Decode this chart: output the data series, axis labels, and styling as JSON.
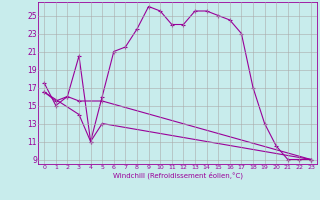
{
  "xlabel": "Windchill (Refroidissement éolien,°C)",
  "bg_color": "#c8ecec",
  "line_color": "#990099",
  "grid_color": "#aaaaaa",
  "xlim": [
    -0.5,
    23.5
  ],
  "ylim": [
    8.5,
    26.5
  ],
  "yticks": [
    9,
    11,
    13,
    15,
    17,
    19,
    21,
    23,
    25
  ],
  "xticks": [
    0,
    1,
    2,
    3,
    4,
    5,
    6,
    7,
    8,
    9,
    10,
    11,
    12,
    13,
    14,
    15,
    16,
    17,
    18,
    19,
    20,
    21,
    22,
    23
  ],
  "series1_x": [
    0,
    1,
    2,
    3,
    4,
    5,
    6,
    7,
    8,
    9,
    10,
    11,
    12,
    13,
    14,
    15,
    16,
    17,
    18,
    19,
    20,
    21,
    22,
    23
  ],
  "series1_y": [
    17.5,
    15.0,
    16.0,
    20.5,
    11.0,
    16.0,
    21.0,
    21.5,
    23.5,
    26.0,
    25.5,
    24.0,
    24.0,
    25.5,
    25.5,
    25.0,
    24.5,
    23.0,
    17.0,
    13.0,
    10.5,
    9.0,
    9.0,
    9.0
  ],
  "series2_x": [
    0,
    1,
    2,
    3,
    5,
    23
  ],
  "series2_y": [
    16.5,
    15.5,
    16.0,
    15.5,
    15.5,
    9.0
  ],
  "series3_x": [
    0,
    3,
    4,
    5,
    23
  ],
  "series3_y": [
    16.5,
    14.0,
    11.0,
    13.0,
    9.0
  ]
}
